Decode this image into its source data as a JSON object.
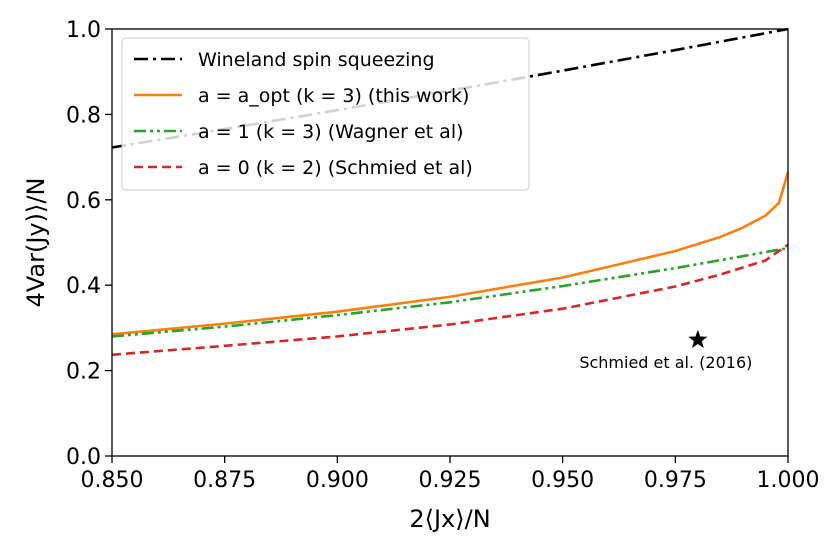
{
  "chart_data": {
    "type": "line",
    "xlabel": "2⟨Jx⟩/N",
    "ylabel": "4Var(Jy)⟩/N",
    "xlim": [
      0.85,
      1.0
    ],
    "ylim": [
      0.0,
      1.0
    ],
    "x_ticks": [
      "0.850",
      "0.875",
      "0.900",
      "0.925",
      "0.950",
      "0.975",
      "1.000"
    ],
    "y_ticks": [
      "0.0",
      "0.2",
      "0.4",
      "0.6",
      "0.8",
      "1.0"
    ],
    "legend_position": "top-left",
    "grid": false,
    "series": [
      {
        "name": "Wineland spin squeezing",
        "color": "#000000",
        "style": "dashdot",
        "x": [
          0.85,
          0.875,
          0.9,
          0.925,
          0.95,
          0.975,
          1.0
        ],
        "y": [
          0.7225,
          0.7656,
          0.81,
          0.8556,
          0.9025,
          0.9506,
          1.0
        ]
      },
      {
        "name": "a = a_opt (k = 3) (this work)",
        "color": "#ff7f0e",
        "style": "solid",
        "x": [
          0.85,
          0.875,
          0.9,
          0.925,
          0.95,
          0.975,
          0.985,
          0.99,
          0.995,
          0.998,
          1.0
        ],
        "y": [
          0.285,
          0.31,
          0.338,
          0.373,
          0.418,
          0.48,
          0.513,
          0.535,
          0.563,
          0.593,
          0.665
        ]
      },
      {
        "name": "a = 1 (k = 3) (Wagner et al)",
        "color": "#2ca02c",
        "style": "dashdotdot",
        "x": [
          0.85,
          0.875,
          0.9,
          0.925,
          0.95,
          0.975,
          0.99,
          1.0
        ],
        "y": [
          0.28,
          0.303,
          0.33,
          0.36,
          0.398,
          0.44,
          0.468,
          0.487
        ]
      },
      {
        "name": "a = 0 (k = 2) (Schmied et al)",
        "color": "#d62728",
        "style": "dashed",
        "x": [
          0.85,
          0.875,
          0.9,
          0.925,
          0.95,
          0.975,
          0.985,
          0.995,
          1.0
        ],
        "y": [
          0.237,
          0.258,
          0.28,
          0.308,
          0.345,
          0.397,
          0.425,
          0.458,
          0.495
        ]
      }
    ],
    "points": [
      {
        "label": "Schmied et al. (2016)",
        "x": 0.98,
        "y": 0.272,
        "marker": "star",
        "color": "#000000"
      }
    ]
  }
}
